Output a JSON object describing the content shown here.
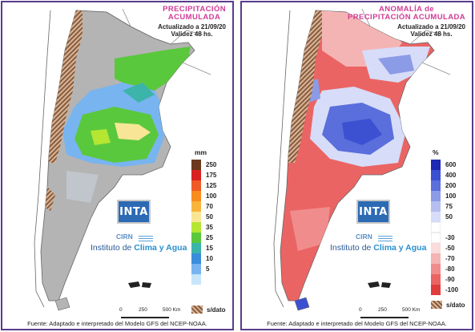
{
  "left": {
    "title_line1": "PRECIPITACIÓN",
    "title_line2": "ACUMULADA",
    "updated": "Actualizado a 21/09/20",
    "validity": "Validez 48 hs.",
    "legend_unit": "mm",
    "legend": [
      {
        "label": "250",
        "color": "#6b3a1e"
      },
      {
        "label": "175",
        "color": "#d92020"
      },
      {
        "label": "125",
        "color": "#f05a28"
      },
      {
        "label": "100",
        "color": "#f88c1e"
      },
      {
        "label": "70",
        "color": "#f8b43c"
      },
      {
        "label": "50",
        "color": "#f8e696"
      },
      {
        "label": "35",
        "color": "#b4e632"
      },
      {
        "label": "25",
        "color": "#5ac83c"
      },
      {
        "label": "15",
        "color": "#3cb4aa"
      },
      {
        "label": "10",
        "color": "#3c8cdc"
      },
      {
        "label": "5",
        "color": "#78b4f0"
      },
      {
        "label": "",
        "color": "#c8e6fa"
      }
    ],
    "nodata_label": "s/dato",
    "logo_text": "INTA",
    "cirn": "CIRN",
    "institute_pre": "Instituto de ",
    "institute_bold": "Clima y Agua",
    "scale_labels": [
      "0",
      "250",
      "500 Km"
    ],
    "footer": "Fuente: Adaptado e interpretado del Modelo GFS del NCEP-NOAA."
  },
  "right": {
    "title_line1": "ANOMALÍA de",
    "title_line2": "PRECIPITACIÓN ACUMULADA",
    "updated": "Actualizado a 21/09/20",
    "validity": "Validez 48 hs.",
    "legend_unit": "%",
    "legend": [
      {
        "label": "600",
        "color": "#1e28b4"
      },
      {
        "label": "400",
        "color": "#3c50d2"
      },
      {
        "label": "200",
        "color": "#5a6edc"
      },
      {
        "label": "100",
        "color": "#8c9be6"
      },
      {
        "label": "75",
        "color": "#b4bef0"
      },
      {
        "label": "50",
        "color": "#d7dcf8"
      },
      {
        "label": "",
        "color": "#ffffff"
      },
      {
        "label": "-30",
        "color": "#ffffff"
      },
      {
        "label": "-50",
        "color": "#fadcdc"
      },
      {
        "label": "-70",
        "color": "#f5b4b4"
      },
      {
        "label": "-80",
        "color": "#f08c8c"
      },
      {
        "label": "-90",
        "color": "#eb6464"
      },
      {
        "label": "-100",
        "color": "#e13c3c"
      }
    ],
    "nodata_label": "s/dato",
    "logo_text": "INTA",
    "cirn": "CIRN",
    "institute_pre": "Instituto de ",
    "institute_bold": "Clima y Agua",
    "scale_labels": [
      "0",
      "250",
      "500 Km"
    ],
    "footer": "Fuente: Adaptado e interpretado del Modelo GFS del NCEP-NOAA."
  }
}
